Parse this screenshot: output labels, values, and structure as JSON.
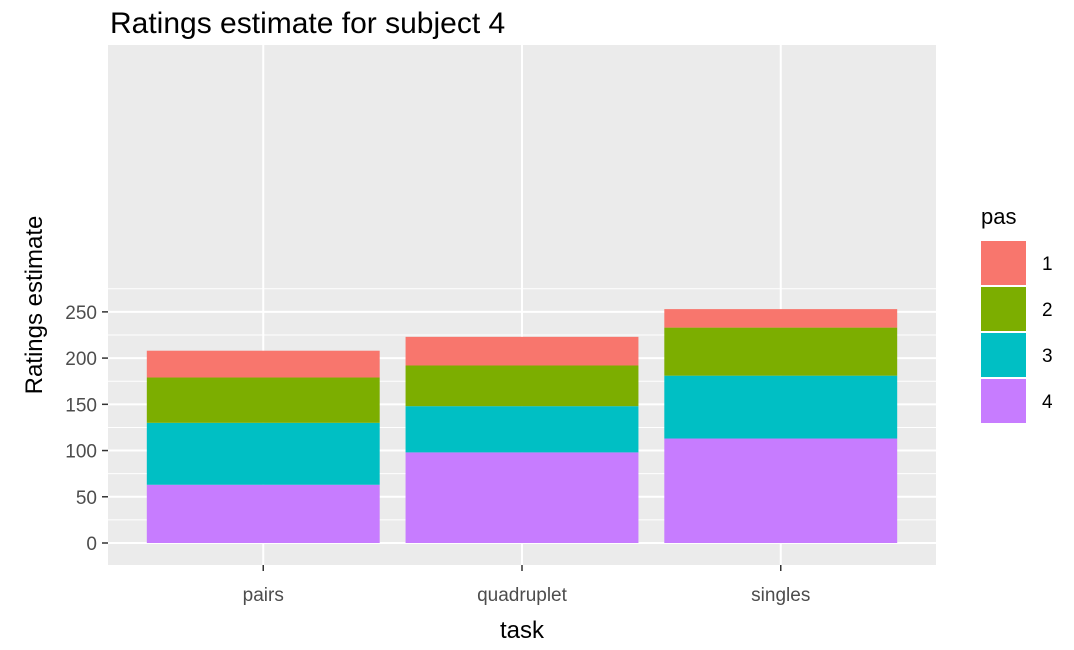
{
  "chart_data": {
    "type": "bar",
    "stacked": true,
    "title": "Ratings estimate for subject 4",
    "xlabel": "task",
    "ylabel": "Ratings estimate",
    "categories": [
      "pairs",
      "quadruplet",
      "singles"
    ],
    "ylim": [
      0,
      262
    ],
    "yticks": [
      0,
      50,
      100,
      150,
      200,
      250
    ],
    "grid": true,
    "legend_title": "pas",
    "legend_position": "right",
    "stack_order_bottom_to_top": [
      "4",
      "3",
      "2",
      "1"
    ],
    "series": [
      {
        "name": "1",
        "color": "#F8766D",
        "values": [
          29,
          31,
          20
        ]
      },
      {
        "name": "2",
        "color": "#7CAE00",
        "values": [
          49,
          44,
          52
        ]
      },
      {
        "name": "3",
        "color": "#00BFC4",
        "values": [
          67,
          50,
          68
        ]
      },
      {
        "name": "4",
        "color": "#C77CFF",
        "values": [
          63,
          98,
          113
        ]
      }
    ]
  }
}
